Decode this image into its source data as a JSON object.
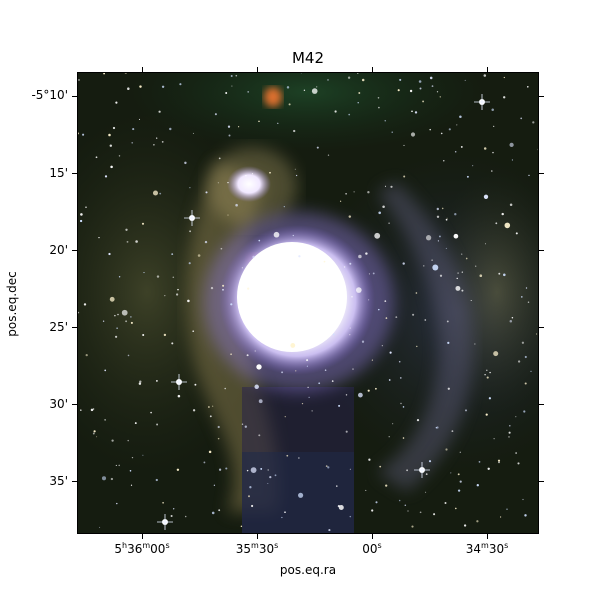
{
  "title": "M42",
  "axes": {
    "xlabel": "pos.eq.ra",
    "ylabel": "pos.eq.dec",
    "y_ticks": [
      "-5°10'",
      "15'",
      "20'",
      "25'",
      "30'",
      "35'"
    ],
    "x_ticks": [
      {
        "h": "5",
        "m": "36",
        "s": "00"
      },
      {
        "h": "",
        "m": "35",
        "s": "30"
      },
      {
        "h": "",
        "m": "",
        "s": "00"
      },
      {
        "h": "",
        "m": "34",
        "s": "30"
      }
    ]
  },
  "image": {
    "subject": "Orion Nebula (M42) infrared-color composite",
    "colors": {
      "background": "#1a2112",
      "core": "#ffffff",
      "glow": "#b9a4f0",
      "dust": "#6d6a40",
      "red_wisp": "#ff4a5a"
    }
  }
}
